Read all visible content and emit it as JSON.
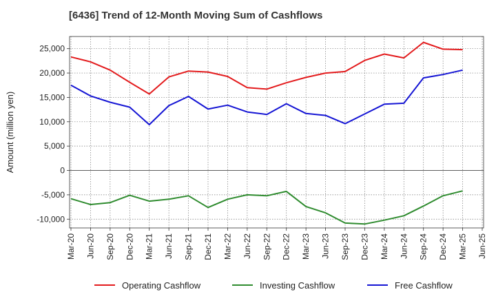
{
  "chart_data": {
    "type": "line",
    "title": "[6436]  Trend of 12-Month Moving Sum of Cashflows",
    "xlabel": "",
    "ylabel": "Amount (million yen)",
    "ylim": [
      -11800,
      27500
    ],
    "yticks": [
      -10000,
      -5000,
      0,
      5000,
      10000,
      15000,
      20000,
      25000
    ],
    "ytick_labels": [
      "-10,000",
      "-5,000",
      "0",
      "5,000",
      "10,000",
      "15,000",
      "20,000",
      "25,000"
    ],
    "x_tick_labels": [
      "Mar-20",
      "Jun-20",
      "Sep-20",
      "Dec-20",
      "Mar-21",
      "Jun-21",
      "Sep-21",
      "Dec-21",
      "Mar-22",
      "Jun-22",
      "Sep-22",
      "Dec-22",
      "Mar-23",
      "Jun-23",
      "Sep-23",
      "Dec-23",
      "Mar-24",
      "Jun-24",
      "Sep-24",
      "Dec-24",
      "Mar-25",
      "Jun-25"
    ],
    "categories": [
      "Mar-20",
      "Jun-20",
      "Sep-20",
      "Dec-20",
      "Mar-21",
      "Jun-21",
      "Sep-21",
      "Dec-21",
      "Mar-22",
      "Jun-22",
      "Sep-22",
      "Dec-22",
      "Mar-23",
      "Jun-23",
      "Sep-23",
      "Dec-23",
      "Mar-24",
      "Jun-24",
      "Sep-24",
      "Dec-24",
      "Mar-25"
    ],
    "series": [
      {
        "name": "Operating Cashflow",
        "color": "#e31a1c",
        "values": [
          23300,
          22300,
          20600,
          18100,
          15700,
          19200,
          20400,
          20200,
          19300,
          17000,
          16700,
          18000,
          19100,
          20000,
          20300,
          22600,
          23900,
          23100,
          26300,
          24900,
          24800
        ]
      },
      {
        "name": "Investing Cashflow",
        "color": "#2e8b2e",
        "values": [
          -5800,
          -7000,
          -6600,
          -5100,
          -6300,
          -5900,
          -5200,
          -7600,
          -5900,
          -5000,
          -5200,
          -4300,
          -7400,
          -8700,
          -10800,
          -11000,
          -10200,
          -9300,
          -7300,
          -5200,
          -4200
        ]
      },
      {
        "name": "Free Cashflow",
        "color": "#1414d4",
        "values": [
          17500,
          15300,
          14000,
          13000,
          9400,
          13300,
          15200,
          12600,
          13400,
          12000,
          11500,
          13700,
          11700,
          11300,
          9600,
          11600,
          13600,
          13800,
          19000,
          19700,
          20600
        ]
      }
    ],
    "grid": true,
    "legend": "bottom"
  }
}
